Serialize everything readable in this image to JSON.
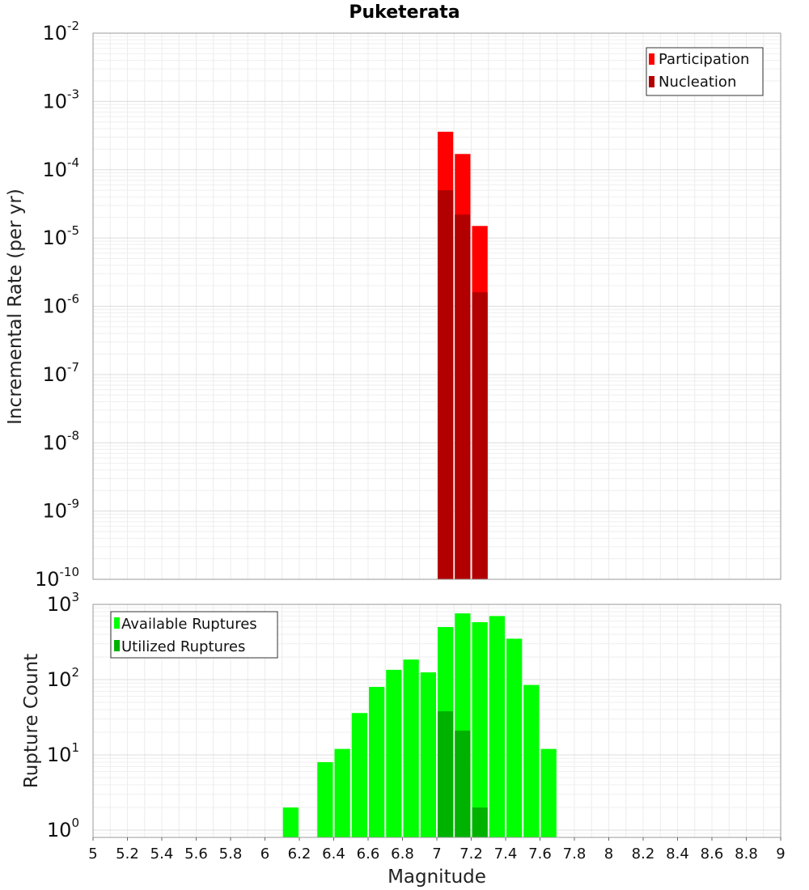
{
  "chart_data": [
    {
      "type": "bar",
      "title": "Puketerata",
      "ylabel": "Incremental Rate (per yr)",
      "xlabel": "",
      "xlim": [
        5,
        9
      ],
      "ylim": [
        1e-10,
        0.01
      ],
      "yscale": "log",
      "bin_width": 0.1,
      "grid": true,
      "legend_position": "top-right",
      "x_tick_values": [
        5,
        5.2,
        5.4,
        5.6,
        5.8,
        6,
        6.2,
        6.4,
        6.6,
        6.8,
        7,
        7.2,
        7.4,
        7.6,
        7.8,
        8,
        8.2,
        8.4,
        8.6,
        8.8,
        9
      ],
      "y_tick_exponents": [
        -10,
        -9,
        -8,
        -7,
        -6,
        -5,
        -4,
        -3,
        -2
      ],
      "y_tick_base": "10",
      "series": [
        {
          "name": "Participation",
          "color": "#ff0000",
          "x": [
            7.05,
            7.15,
            7.25
          ],
          "values": [
            0.00036,
            0.00017,
            1.5e-05
          ]
        },
        {
          "name": "Nucleation",
          "color": "#b20000",
          "x": [
            7.05,
            7.15,
            7.25
          ],
          "values": [
            5e-05,
            2.2e-05,
            1.6e-06
          ]
        }
      ]
    },
    {
      "type": "bar",
      "title": "",
      "ylabel": "Rupture Count",
      "xlabel": "Magnitude",
      "xlim": [
        5,
        9
      ],
      "ylim": [
        0.8,
        1000
      ],
      "yscale": "log",
      "bin_width": 0.1,
      "grid": true,
      "legend_position": "top-left",
      "x_tick_values": [
        5,
        5.2,
        5.4,
        5.6,
        5.8,
        6,
        6.2,
        6.4,
        6.6,
        6.8,
        7,
        7.2,
        7.4,
        7.6,
        7.8,
        8,
        8.2,
        8.4,
        8.6,
        8.8,
        9
      ],
      "x_tick_labels": [
        "5",
        "5.2",
        "5.4",
        "5.6",
        "5.8",
        "6",
        "6.2",
        "6.4",
        "6.6",
        "6.8",
        "7",
        "7.2",
        "7.4",
        "7.6",
        "7.8",
        "8",
        "8.2",
        "8.4",
        "8.6",
        "8.8",
        "9"
      ],
      "y_tick_exponents": [
        0,
        1,
        2,
        3
      ],
      "y_tick_base": "10",
      "series": [
        {
          "name": "Available Ruptures",
          "color": "#00ff00",
          "x": [
            6.15,
            6.35,
            6.45,
            6.55,
            6.65,
            6.75,
            6.85,
            6.95,
            7.05,
            7.15,
            7.25,
            7.35,
            7.45,
            7.55,
            7.65
          ],
          "values": [
            2,
            8,
            12,
            36,
            80,
            135,
            185,
            125,
            500,
            760,
            580,
            700,
            350,
            85,
            12
          ]
        },
        {
          "name": "Utilized Ruptures",
          "color": "#00b200",
          "x": [
            7.05,
            7.15,
            7.25
          ],
          "values": [
            38,
            21,
            2
          ]
        }
      ]
    }
  ]
}
